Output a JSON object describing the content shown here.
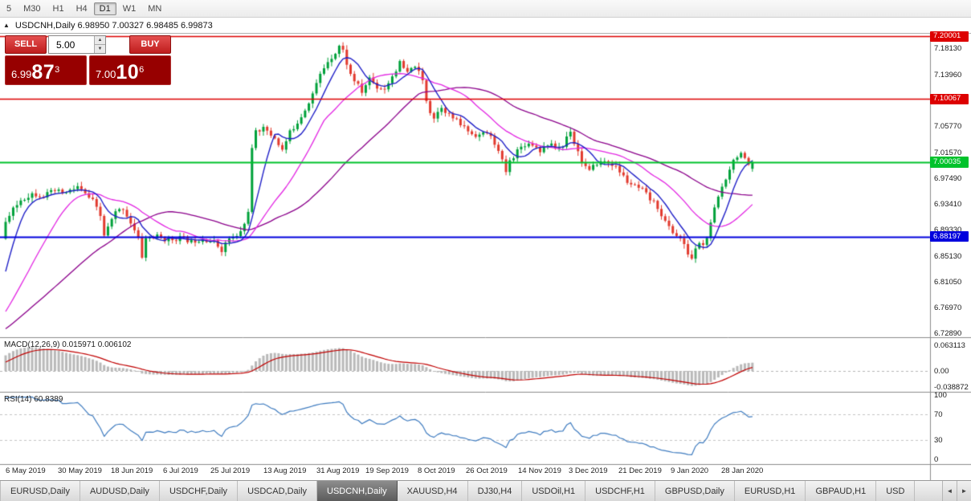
{
  "toolbar": {
    "timeframes": [
      {
        "label": "5",
        "active": false
      },
      {
        "label": "M30",
        "active": false
      },
      {
        "label": "H1",
        "active": false
      },
      {
        "label": "H4",
        "active": false
      },
      {
        "label": "D1",
        "active": true
      },
      {
        "label": "W1",
        "active": false
      },
      {
        "label": "MN",
        "active": false
      }
    ]
  },
  "chart_header": {
    "collapse_icon": "▲",
    "title": "USDCNH,Daily 6.98950 7.00327 6.98485 6.99873"
  },
  "trade_panel": {
    "sell_label": "SELL",
    "buy_label": "BUY",
    "volume_value": "5.00",
    "spinner_up": "▲",
    "spinner_down": "▼",
    "sell_price": {
      "base": "6.99",
      "big": "87",
      "sup": "3"
    },
    "buy_price": {
      "base": "7.00",
      "big": "10",
      "sup": "6"
    }
  },
  "price_axis": {
    "ticks": [
      "7.18130",
      "7.13960",
      "7.05770",
      "7.01570",
      "6.97490",
      "6.93410",
      "6.89330",
      "6.85130",
      "6.81050",
      "6.76970",
      "6.72890"
    ],
    "levels": [
      {
        "value": "7.20001",
        "color": "#dd0000",
        "width": 1.4,
        "type": "resistance-upper"
      },
      {
        "value": "7.10067",
        "color": "#dd0000",
        "width": 1.4,
        "type": "resistance"
      },
      {
        "value": "7.00035",
        "color": "#00c22b",
        "width": 2,
        "type": "pivot"
      },
      {
        "value": "6.88197",
        "color": "#0000dd",
        "width": 2,
        "type": "support"
      }
    ]
  },
  "indicators": {
    "macd": {
      "label": "MACD(12,26,9) 0.015971 0.006102",
      "params": [
        12,
        26,
        9
      ],
      "axis": [
        "0.063113",
        "0.00",
        "-0.038872"
      ]
    },
    "rsi": {
      "label": "RSI(14) 60.8389",
      "period": 14,
      "levels": [
        70,
        30
      ],
      "axis": [
        "100",
        "70",
        "30",
        "0"
      ]
    }
  },
  "time_axis": {
    "labels": [
      "6 May 2019",
      "30 May 2019",
      "18 Jun 2019",
      "6 Jul 2019",
      "25 Jul 2019",
      "13 Aug 2019",
      "31 Aug 2019",
      "19 Sep 2019",
      "8 Oct 2019",
      "26 Oct 2019",
      "14 Nov 2019",
      "3 Dec 2019",
      "21 Dec 2019",
      "9 Jan 2020",
      "28 Jan 2020"
    ]
  },
  "tab_bar": {
    "scroll_left": "◄",
    "scroll_right": "►",
    "tabs": [
      {
        "label": "EURUSD,Daily",
        "active": false
      },
      {
        "label": "AUDUSD,Daily",
        "active": false
      },
      {
        "label": "USDCHF,Daily",
        "active": false
      },
      {
        "label": "USDCAD,Daily",
        "active": false
      },
      {
        "label": "USDCNH,Daily",
        "active": true
      },
      {
        "label": "XAUUSD,H4",
        "active": false
      },
      {
        "label": "DJ30,H4",
        "active": false
      },
      {
        "label": "USDOil,H1",
        "active": false
      },
      {
        "label": "USDCHF,H1",
        "active": false
      },
      {
        "label": "GBPUSD,Daily",
        "active": false
      },
      {
        "label": "EURUSD,H1",
        "active": false
      },
      {
        "label": "GBPAUD,H1",
        "active": false
      },
      {
        "label": "USD",
        "active": false
      }
    ]
  },
  "chart_data": {
    "type": "candlestick",
    "symbol": "USDCNH",
    "timeframe": "Daily",
    "last_candle": {
      "open": 6.9895,
      "high": 7.00327,
      "low": 6.98485,
      "close": 6.99873
    },
    "levels": [
      7.20001,
      7.10067,
      7.00035,
      6.88197
    ],
    "price_range": [
      6.722,
      7.204
    ],
    "ma_periods": [
      7,
      20,
      45
    ],
    "colors": {
      "up": "#00a13a",
      "down": "#e23a2e",
      "ma_fast": "#2020c8",
      "ma_mid": "#e326e3",
      "ma_slow": "#8b008b",
      "macd_hist": "#b9b9b9",
      "macd_signal": "#c00000",
      "rsi": "#3f7cc0",
      "background": "#ffffff"
    },
    "anchors": [
      [
        -70,
        6.7
      ],
      [
        -45,
        6.708
      ],
      [
        -25,
        6.715
      ],
      [
        -12,
        6.724
      ],
      [
        -6,
        6.758
      ],
      [
        -3,
        6.818
      ],
      [
        -1,
        6.878
      ],
      [
        0,
        6.905
      ],
      [
        2,
        6.924
      ],
      [
        4,
        6.94
      ],
      [
        7,
        6.95
      ],
      [
        10,
        6.947
      ],
      [
        13,
        6.954
      ],
      [
        16,
        6.951
      ],
      [
        19,
        6.961
      ],
      [
        21,
        6.949
      ],
      [
        23,
        6.938
      ],
      [
        25,
        6.914
      ],
      [
        26,
        6.884
      ],
      [
        27,
        6.896
      ],
      [
        29,
        6.92
      ],
      [
        31,
        6.927
      ],
      [
        33,
        6.904
      ],
      [
        35,
        6.878
      ],
      [
        36,
        6.85
      ],
      [
        37,
        6.879
      ],
      [
        40,
        6.882
      ],
      [
        43,
        6.876
      ],
      [
        46,
        6.88
      ],
      [
        49,
        6.874
      ],
      [
        52,
        6.879
      ],
      [
        55,
        6.873
      ],
      [
        57,
        6.861
      ],
      [
        59,
        6.879
      ],
      [
        61,
        6.881
      ],
      [
        63,
        6.901
      ],
      [
        64,
        6.924
      ],
      [
        65,
        7.02
      ],
      [
        66,
        7.047
      ],
      [
        67,
        7.051
      ],
      [
        68,
        7.059
      ],
      [
        69,
        7.047
      ],
      [
        71,
        7.039
      ],
      [
        73,
        7.019
      ],
      [
        75,
        7.047
      ],
      [
        77,
        7.064
      ],
      [
        79,
        7.084
      ],
      [
        81,
        7.109
      ],
      [
        83,
        7.139
      ],
      [
        85,
        7.161
      ],
      [
        87,
        7.174
      ],
      [
        88,
        7.185
      ],
      [
        89,
        7.177
      ],
      [
        90,
        7.157
      ],
      [
        91,
        7.139
      ],
      [
        93,
        7.121
      ],
      [
        94,
        7.111
      ],
      [
        96,
        7.134
      ],
      [
        98,
        7.119
      ],
      [
        100,
        7.117
      ],
      [
        102,
        7.137
      ],
      [
        104,
        7.157
      ],
      [
        106,
        7.141
      ],
      [
        108,
        7.154
      ],
      [
        110,
        7.129
      ],
      [
        111,
        7.099
      ],
      [
        112,
        7.081
      ],
      [
        113,
        7.071
      ],
      [
        115,
        7.089
      ],
      [
        117,
        7.075
      ],
      [
        119,
        7.065
      ],
      [
        121,
        7.055
      ],
      [
        123,
        7.045
      ],
      [
        125,
        7.043
      ],
      [
        127,
        7.047
      ],
      [
        129,
        7.031
      ],
      [
        131,
        7.001
      ],
      [
        132,
        6.985
      ],
      [
        133,
        7.001
      ],
      [
        135,
        7.019
      ],
      [
        137,
        7.029
      ],
      [
        139,
        7.029
      ],
      [
        141,
        7.019
      ],
      [
        143,
        7.029
      ],
      [
        145,
        7.023
      ],
      [
        147,
        7.025
      ],
      [
        148,
        7.041
      ],
      [
        149,
        7.051
      ],
      [
        150,
        7.031
      ],
      [
        151,
        7.017
      ],
      [
        152,
        7.001
      ],
      [
        154,
        6.985
      ],
      [
        156,
        6.999
      ],
      [
        158,
        7.001
      ],
      [
        160,
        6.997
      ],
      [
        162,
        6.985
      ],
      [
        164,
        6.969
      ],
      [
        166,
        6.961
      ],
      [
        168,
        6.955
      ],
      [
        170,
        6.941
      ],
      [
        172,
        6.929
      ],
      [
        174,
        6.905
      ],
      [
        176,
        6.889
      ],
      [
        178,
        6.879
      ],
      [
        180,
        6.855
      ],
      [
        181,
        6.847
      ],
      [
        182,
        6.861
      ],
      [
        183,
        6.873
      ],
      [
        184,
        6.867
      ],
      [
        185,
        6.881
      ],
      [
        186,
        6.901
      ],
      [
        187,
        6.925
      ],
      [
        188,
        6.945
      ],
      [
        189,
        6.961
      ],
      [
        190,
        6.975
      ],
      [
        191,
        6.991
      ],
      [
        192,
        7.003
      ],
      [
        193,
        7.011
      ],
      [
        194,
        7.015
      ],
      [
        195,
        7.003
      ],
      [
        196,
        6.993
      ],
      [
        197,
        6.9987
      ]
    ]
  }
}
